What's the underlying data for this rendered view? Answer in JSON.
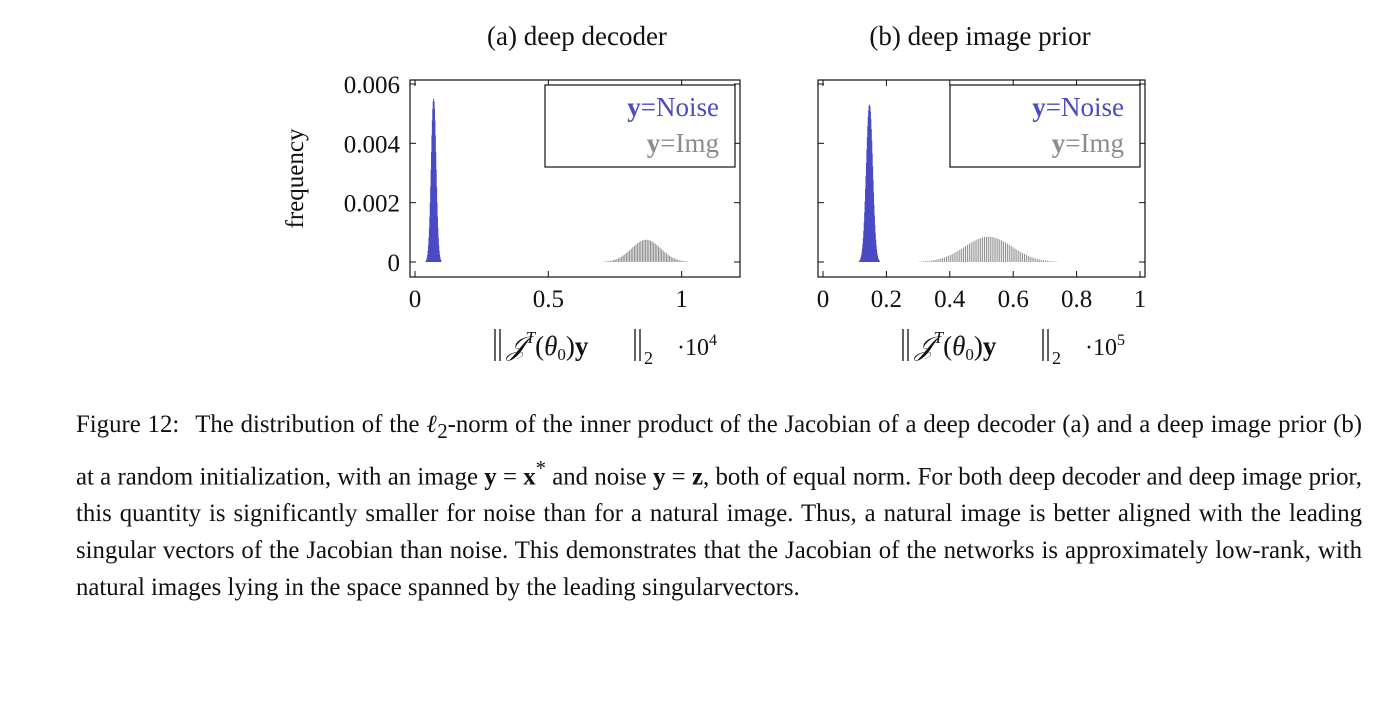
{
  "chart_data": [
    {
      "type": "bar",
      "panel_label": "(a)",
      "title": "deep decoder",
      "ylabel": "frequency",
      "xlabel_latex": "||J^T(θ0)y||_2",
      "x_scale_label": "·10",
      "x_scale_exp": "4",
      "xlim": [
        0,
        1.2
      ],
      "ylim": [
        0,
        0.006
      ],
      "x_ticks": [
        0,
        0.5,
        1
      ],
      "x_tick_labels": [
        "0",
        "0.5",
        "1"
      ],
      "y_ticks": [
        0,
        0.002,
        0.004,
        0.006
      ],
      "y_tick_labels": [
        "0",
        "0.002",
        "0.004",
        "0.006"
      ],
      "legend_placement": "top-right",
      "series": [
        {
          "name": "y=Noise",
          "legend_bold": "y",
          "legend_rest": "=Noise",
          "color": "#4b4bc4",
          "mean": 0.068,
          "std": 0.009,
          "peak": 0.0055,
          "step": 0.0016
        },
        {
          "name": "y=Img",
          "legend_bold": "y",
          "legend_rest": "=Img",
          "color": "#8c8c8c",
          "mean": 0.865,
          "std": 0.055,
          "peak": 0.00075,
          "step": 0.006
        }
      ]
    },
    {
      "type": "bar",
      "panel_label": "(b)",
      "title": "deep image prior",
      "ylabel": "",
      "xlabel_latex": "||J^T(θ0)y||_2",
      "x_scale_label": "·10",
      "x_scale_exp": "5",
      "xlim": [
        0,
        1
      ],
      "ylim": [
        0,
        0.006
      ],
      "x_ticks": [
        0,
        0.2,
        0.4,
        0.6,
        0.8,
        1
      ],
      "x_tick_labels": [
        "0",
        "0.2",
        "0.4",
        "0.6",
        "0.8",
        "1"
      ],
      "y_ticks": [
        0,
        0.002,
        0.004,
        0.006
      ],
      "y_tick_labels": [],
      "legend_placement": "top-right",
      "series": [
        {
          "name": "y=Noise",
          "legend_bold": "y",
          "legend_rest": "=Noise",
          "color": "#4b4bc4",
          "mean": 0.145,
          "std": 0.01,
          "peak": 0.0053,
          "step": 0.0014
        },
        {
          "name": "y=Img",
          "legend_bold": "y",
          "legend_rest": "=Img",
          "color": "#8c8c8c",
          "mean": 0.52,
          "std": 0.075,
          "peak": 0.00085,
          "step": 0.006
        }
      ]
    }
  ],
  "caption": {
    "label": "Figure 12:",
    "p1": "The distribution of the ",
    "ell": "ℓ",
    "ell_sub": "2",
    "p2": "-norm of the inner product of the Jacobian of a deep decoder (a) and a deep image prior (b) at a random initialization, with an image ",
    "eq1_a": "y",
    "eq1_b": " = ",
    "eq1_c": "x",
    "eq1_sup": "*",
    "p3": " and noise ",
    "eq2_a": "y",
    "eq2_b": " = ",
    "eq2_c": "z",
    "p4": ", both of equal norm. For both deep decoder and deep image prior, this quantity is significantly smaller for noise than for a natural image. Thus, a natural image is better aligned with the leading singular vectors of the Jacobian than noise. This demonstrates that the Jacobian of the networks is approximately low-rank, with natural images lying in the space spanned by the leading singularvectors."
  }
}
